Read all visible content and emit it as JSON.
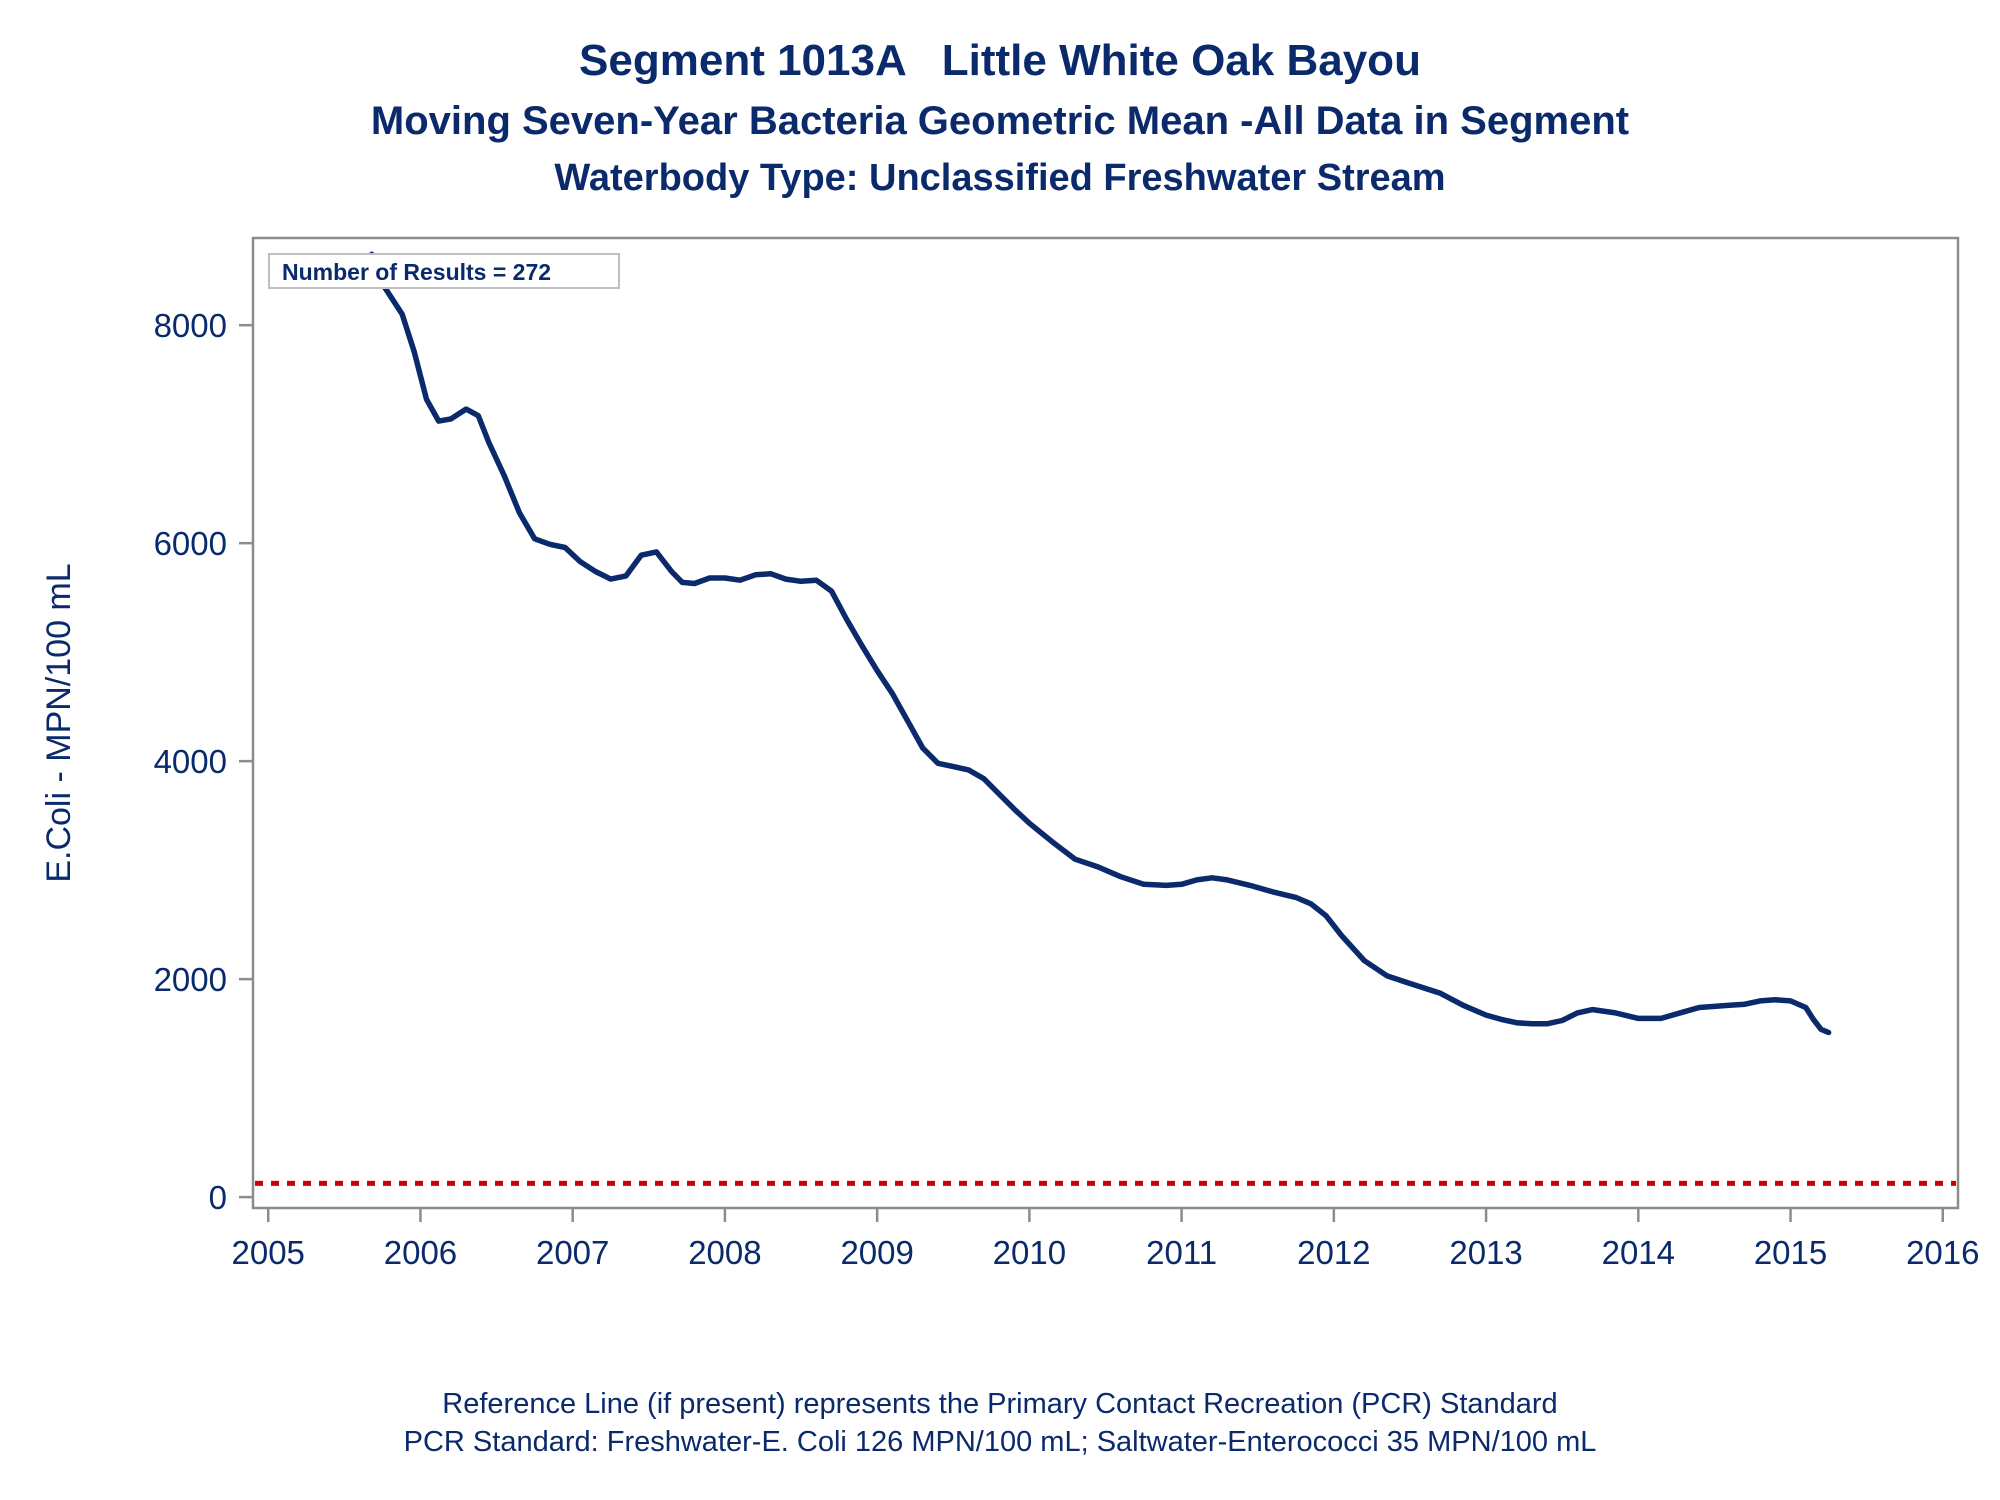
{
  "chart_data": {
    "type": "line",
    "title": "Segment 1013A   Little White Oak Bayou",
    "subtitle": "Moving Seven-Year Bacteria Geometric Mean -All Data in Segment",
    "subtitle2": "Waterbody Type: Unclassified Freshwater Stream",
    "xlabel": "",
    "ylabel": "E.Coli - MPN/100 mL",
    "xlim": [
      2004.9,
      2016.1
    ],
    "ylim": [
      -100,
      8800
    ],
    "xticks": [
      "2005",
      "2006",
      "2007",
      "2008",
      "2009",
      "2010",
      "2011",
      "2012",
      "2013",
      "2014",
      "2015",
      "2016"
    ],
    "yticks": [
      "0",
      "2000",
      "4000",
      "6000",
      "8000"
    ],
    "annotation": "Number of Results = 272",
    "grid": false,
    "reference_line": {
      "value": 126,
      "style": "dotted",
      "color": "#cc0000"
    },
    "series": [
      {
        "color": "#0a2a6b",
        "x": [
          2005.68,
          2005.75,
          2005.88,
          2005.96,
          2006.04,
          2006.12,
          2006.2,
          2006.3,
          2006.38,
          2006.45,
          2006.55,
          2006.65,
          2006.75,
          2006.85,
          2006.95,
          2007.05,
          2007.15,
          2007.25,
          2007.35,
          2007.45,
          2007.55,
          2007.65,
          2007.72,
          2007.8,
          2007.9,
          2008.0,
          2008.1,
          2008.2,
          2008.3,
          2008.4,
          2008.5,
          2008.6,
          2008.7,
          2008.8,
          2008.9,
          2009.0,
          2009.1,
          2009.2,
          2009.3,
          2009.4,
          2009.5,
          2009.6,
          2009.7,
          2009.8,
          2009.9,
          2010.0,
          2010.15,
          2010.3,
          2010.45,
          2010.6,
          2010.75,
          2010.9,
          2011.0,
          2011.1,
          2011.2,
          2011.3,
          2011.45,
          2011.6,
          2011.75,
          2011.85,
          2011.95,
          2012.05,
          2012.2,
          2012.35,
          2012.5,
          2012.7,
          2012.85,
          2013.0,
          2013.1,
          2013.2,
          2013.3,
          2013.4,
          2013.5,
          2013.6,
          2013.7,
          2013.85,
          2014.0,
          2014.15,
          2014.3,
          2014.4,
          2014.5,
          2014.6,
          2014.7,
          2014.8,
          2014.9,
          2015.0,
          2015.1,
          2015.15,
          2015.2,
          2015.25
        ],
        "y": [
          8650,
          8380,
          8100,
          7750,
          7320,
          7120,
          7140,
          7230,
          7170,
          6920,
          6620,
          6280,
          6040,
          5990,
          5960,
          5830,
          5740,
          5670,
          5700,
          5890,
          5920,
          5740,
          5640,
          5630,
          5680,
          5680,
          5660,
          5710,
          5720,
          5670,
          5650,
          5660,
          5560,
          5300,
          5060,
          4830,
          4620,
          4370,
          4120,
          3980,
          3950,
          3920,
          3840,
          3700,
          3560,
          3430,
          3260,
          3100,
          3030,
          2940,
          2870,
          2860,
          2870,
          2910,
          2930,
          2910,
          2860,
          2800,
          2750,
          2690,
          2580,
          2400,
          2170,
          2030,
          1960,
          1870,
          1760,
          1670,
          1630,
          1600,
          1590,
          1590,
          1620,
          1690,
          1720,
          1690,
          1640,
          1640,
          1700,
          1740,
          1750,
          1760,
          1770,
          1800,
          1810,
          1800,
          1740,
          1630,
          1540,
          1510
        ]
      }
    ]
  },
  "footnotes": {
    "line1": "Reference Line (if present) represents the Primary Contact Recreation (PCR) Standard",
    "line2": "PCR Standard: Freshwater-E. Coli 126 MPN/100 mL; Saltwater-Enterococci 35 MPN/100 mL"
  }
}
